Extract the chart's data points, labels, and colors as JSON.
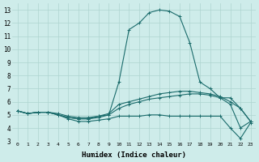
{
  "title": "",
  "xlabel": "Humidex (Indice chaleur)",
  "ylabel": "",
  "bg_color": "#ceecea",
  "line_color": "#1a6b6b",
  "grid_color": "#aed4d0",
  "xlim": [
    -0.5,
    23.5
  ],
  "ylim": [
    3,
    13.5
  ],
  "yticks": [
    3,
    4,
    5,
    6,
    7,
    8,
    9,
    10,
    11,
    12,
    13
  ],
  "xticks": [
    0,
    1,
    2,
    3,
    4,
    5,
    6,
    7,
    8,
    9,
    10,
    11,
    12,
    13,
    14,
    15,
    16,
    17,
    18,
    19,
    20,
    21,
    22,
    23
  ],
  "line1": [
    5.3,
    5.1,
    5.2,
    5.2,
    5.0,
    4.7,
    4.5,
    4.5,
    4.6,
    4.7,
    4.9,
    4.9,
    4.9,
    5.0,
    5.0,
    4.9,
    4.9,
    4.9,
    4.9,
    4.9,
    4.9,
    4.0,
    3.2,
    4.4
  ],
  "line2": [
    5.3,
    5.1,
    5.2,
    5.2,
    5.0,
    4.8,
    4.7,
    4.7,
    4.8,
    5.0,
    5.5,
    5.8,
    6.0,
    6.2,
    6.3,
    6.4,
    6.5,
    6.6,
    6.6,
    6.5,
    6.3,
    6.3,
    5.5,
    4.5
  ],
  "line3": [
    5.3,
    5.1,
    5.2,
    5.2,
    5.1,
    4.9,
    4.8,
    4.8,
    4.9,
    5.1,
    5.8,
    6.0,
    6.2,
    6.4,
    6.6,
    6.7,
    6.8,
    6.8,
    6.7,
    6.6,
    6.4,
    6.0,
    5.5,
    4.5
  ],
  "line4": [
    5.3,
    5.1,
    5.2,
    5.2,
    5.0,
    4.8,
    4.7,
    4.7,
    4.9,
    5.0,
    7.5,
    11.5,
    12.0,
    12.8,
    13.0,
    12.9,
    12.5,
    10.5,
    7.5,
    7.0,
    6.3,
    5.8,
    4.0,
    4.5
  ]
}
